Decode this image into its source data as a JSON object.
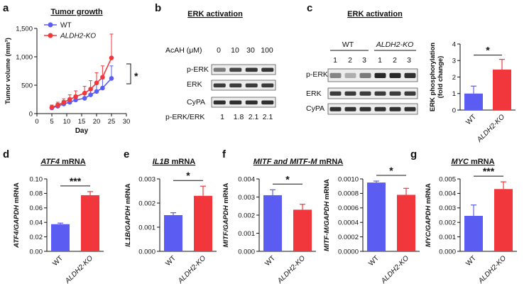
{
  "colors": {
    "wt": "#5b5cf2",
    "ko": "#f2373c"
  },
  "panels": {
    "a": {
      "letter": "a",
      "title": "Tumor growth",
      "legend_wt": "WT",
      "legend_ko": "ALDH2-KO",
      "sig": "*"
    },
    "b": {
      "letter": "b",
      "title": "ERK activation",
      "dose_label": "AcAH (μM)",
      "doses": [
        "0",
        "10",
        "30",
        "100"
      ],
      "rows": [
        "p-ERK",
        "ERK",
        "CyPA"
      ],
      "ratio_label": "p-ERK/ERK",
      "ratios": [
        "1",
        "1.8",
        "2.1",
        "2.1"
      ]
    },
    "c": {
      "letter": "c",
      "title": "ERK activation",
      "group_wt": "WT",
      "group_ko": "ALDH2-KO",
      "lanes": [
        "1",
        "2",
        "3",
        "1",
        "2",
        "3"
      ],
      "rows": [
        "p-ERK",
        "ERK",
        "CyPA"
      ]
    },
    "d": {
      "letter": "d",
      "title_italic": "ATF4",
      "title_rest": " mRNA"
    },
    "e": {
      "letter": "e",
      "title_italic": "IL1B",
      "title_rest": " mRNA"
    },
    "f": {
      "letter": "f",
      "title_italic": "MITF and MITF-M",
      "title_rest": " mRNA"
    },
    "g": {
      "letter": "g",
      "title_italic": "MYC",
      "title_rest": " mRNA"
    }
  },
  "chart_data": [
    {
      "id": "a",
      "type": "line",
      "xlabel": "Day",
      "ylabel": "Tumor volume (mm³)",
      "xlim": [
        0,
        30
      ],
      "ylim": [
        0,
        1500
      ],
      "xticks": [
        "0",
        "5",
        "10",
        "15",
        "20",
        "25",
        "30"
      ],
      "yticks": [
        "0",
        "500",
        "1,000",
        "1,500"
      ],
      "x": [
        5,
        7,
        9,
        11,
        13,
        16,
        18,
        20,
        22,
        25
      ],
      "series": [
        {
          "name": "WT",
          "values": [
            100,
            130,
            170,
            200,
            240,
            270,
            330,
            390,
            450,
            620
          ],
          "errors": [
            40,
            50,
            60,
            70,
            80,
            100,
            120,
            140,
            160,
            220
          ]
        },
        {
          "name": "ALDH2-KO",
          "values": [
            110,
            150,
            200,
            250,
            300,
            360,
            430,
            540,
            640,
            980
          ],
          "errors": [
            40,
            50,
            60,
            80,
            100,
            120,
            150,
            180,
            200,
            420
          ]
        }
      ],
      "significance": "*"
    },
    {
      "id": "c",
      "type": "bar",
      "ylabel_lines": [
        "ERK phosphorylation",
        "(fold change)"
      ],
      "categories": [
        "WT",
        "ALDH2-KO"
      ],
      "values": [
        1.0,
        2.45
      ],
      "errors": [
        0.45,
        0.62
      ],
      "ylim": [
        0,
        4
      ],
      "yticks": [
        "0",
        "1",
        "2",
        "3",
        "4"
      ],
      "significance": "*"
    },
    {
      "id": "d",
      "type": "bar",
      "ylabel_italic": "ATF4/GAPDH",
      "ylabel_rest": " mRNA",
      "categories": [
        "WT",
        "ALDH2-KO"
      ],
      "values": [
        0.0375,
        0.0775
      ],
      "errors": [
        0.0015,
        0.005
      ],
      "ylim": [
        0,
        0.1
      ],
      "yticks": [
        "0.00",
        "0.02",
        "0.04",
        "0.06",
        "0.08",
        "0.10"
      ],
      "significance": "***"
    },
    {
      "id": "e",
      "type": "bar",
      "ylabel_italic": "IL1B/GAPDH",
      "ylabel_rest": " mRNA",
      "categories": [
        "WT",
        "ALDH2-KO"
      ],
      "values": [
        0.0015,
        0.0023
      ],
      "errors": [
        0.0001,
        0.0004
      ],
      "ylim": [
        0,
        0.003
      ],
      "yticks": [
        "0.000",
        "0.001",
        "0.002",
        "0.003"
      ],
      "significance": "*"
    },
    {
      "id": "f1",
      "type": "bar",
      "ylabel_italic": "MITF/GAPDH",
      "ylabel_rest": " mRNA",
      "categories": [
        "WT",
        "ALDH2-KO"
      ],
      "values": [
        0.0031,
        0.0023
      ],
      "errors": [
        0.0003,
        0.0003
      ],
      "ylim": [
        0,
        0.004
      ],
      "yticks": [
        "0.000",
        "0.001",
        "0.002",
        "0.003",
        "0.004"
      ],
      "significance": "*"
    },
    {
      "id": "f2",
      "type": "bar",
      "ylabel_italic": "MITF-M/GAPDH",
      "ylabel_rest": " mRNA",
      "categories": [
        "WT",
        "ALDH2-KO"
      ],
      "values": [
        0.00095,
        0.00078
      ],
      "errors": [
        2e-05,
        9e-05
      ],
      "ylim": [
        0,
        0.001
      ],
      "yticks": [
        "0.0000",
        "0.0002",
        "0.0004",
        "0.0006",
        "0.0008",
        "0.0010"
      ],
      "significance": "*"
    },
    {
      "id": "g",
      "type": "bar",
      "ylabel_italic": "MYC/GAPDH",
      "ylabel_rest": " mRNA",
      "categories": [
        "WT",
        "ALDH2-KO"
      ],
      "values": [
        0.00245,
        0.0043
      ],
      "errors": [
        0.00075,
        0.0005
      ],
      "ylim": [
        0,
        0.005
      ],
      "yticks": [
        "0.000",
        "0.001",
        "0.002",
        "0.003",
        "0.004",
        "0.005"
      ],
      "significance": "***"
    }
  ]
}
